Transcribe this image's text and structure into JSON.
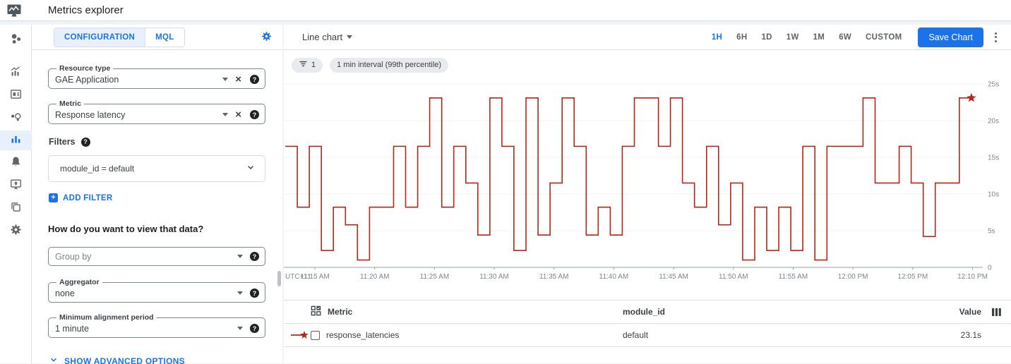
{
  "header": {
    "title": "Metrics explorer"
  },
  "colors": {
    "accent": "#1a73e8",
    "line": "#b1271b"
  },
  "sidebar": {
    "selected": "metrics-explorer",
    "items": [
      "monitoring-overview",
      "dashboards",
      "integrations",
      "services",
      "metrics-explorer",
      "alerting",
      "uptime-checks",
      "groups",
      "settings"
    ]
  },
  "config": {
    "tabs": [
      {
        "label": "CONFIGURATION"
      },
      {
        "label": "MQL"
      }
    ],
    "resource_type": {
      "label": "Resource type",
      "value": "GAE Application"
    },
    "metric": {
      "label": "Metric",
      "value": "Response latency"
    },
    "filters": {
      "label": "Filters",
      "chip": "module_id = default",
      "add_label": "ADD FILTER"
    },
    "question": "How do you want to view that data?",
    "group_by": {
      "placeholder": "Group by"
    },
    "aggregator": {
      "label": "Aggregator",
      "value": "none"
    },
    "alignment": {
      "label": "Minimum alignment period",
      "value": "1 minute"
    },
    "advanced_label": "SHOW ADVANCED OPTIONS"
  },
  "chart": {
    "type_label": "Line chart",
    "ranges": [
      "1H",
      "6H",
      "1D",
      "1W",
      "1M",
      "6W",
      "CUSTOM"
    ],
    "selected_range": "1H",
    "save_label": "Save Chart",
    "chips": {
      "filter_count": "1",
      "interval": "1 min interval (99th percentile)"
    }
  },
  "chart_data": {
    "type": "line",
    "step": true,
    "title": "",
    "xlabel": "",
    "ylabel": "",
    "ylim": [
      0,
      25.5
    ],
    "grid": true,
    "legend_position": "table-below",
    "series": [
      {
        "name": "response_latencies",
        "color": "#b1271b",
        "end_marker": "star"
      }
    ],
    "x_start": "11:13 AM",
    "x_interval_minutes": 1,
    "values": [
      16.5,
      8.2,
      16.5,
      2.3,
      8.2,
      5.8,
      1.0,
      8.2,
      8.2,
      16.5,
      8.2,
      16.5,
      23.1,
      8.2,
      16.5,
      11.5,
      4.4,
      23.1,
      16.5,
      2.3,
      23.1,
      4.4,
      11.5,
      23.1,
      16.5,
      4.4,
      8.2,
      4.4,
      16.5,
      23.1,
      23.1,
      16.5,
      23.1,
      11.5,
      8.2,
      16.5,
      5.8,
      11.5,
      1.0,
      8.2,
      2.3,
      8.2,
      2.3,
      16.5,
      1.0,
      16.5,
      16.5,
      16.5,
      23.1,
      11.5,
      11.5,
      16.5,
      11.5,
      4.2,
      11.5,
      11.5,
      23.1,
      23.1
    ],
    "x_ticks": [
      "UTC+11",
      "11:15 AM",
      "11:20 AM",
      "11:25 AM",
      "11:30 AM",
      "11:35 AM",
      "11:40 AM",
      "11:45 AM",
      "11:50 AM",
      "11:55 AM",
      "12:00 PM",
      "12:05 PM",
      "12:10 PM"
    ],
    "y_ticks": [
      {
        "value": 25,
        "label": "25s"
      },
      {
        "value": 20,
        "label": "20s"
      },
      {
        "value": 15,
        "label": "15s"
      },
      {
        "value": 10,
        "label": "10s"
      },
      {
        "value": 5,
        "label": "5s"
      },
      {
        "value": 0,
        "label": "0"
      }
    ]
  },
  "table": {
    "columns": {
      "metric": "Metric",
      "module_id": "module_id",
      "value": "Value"
    },
    "rows": [
      {
        "metric": "response_latencies",
        "module_id": "default",
        "value": "23.1s"
      }
    ]
  }
}
